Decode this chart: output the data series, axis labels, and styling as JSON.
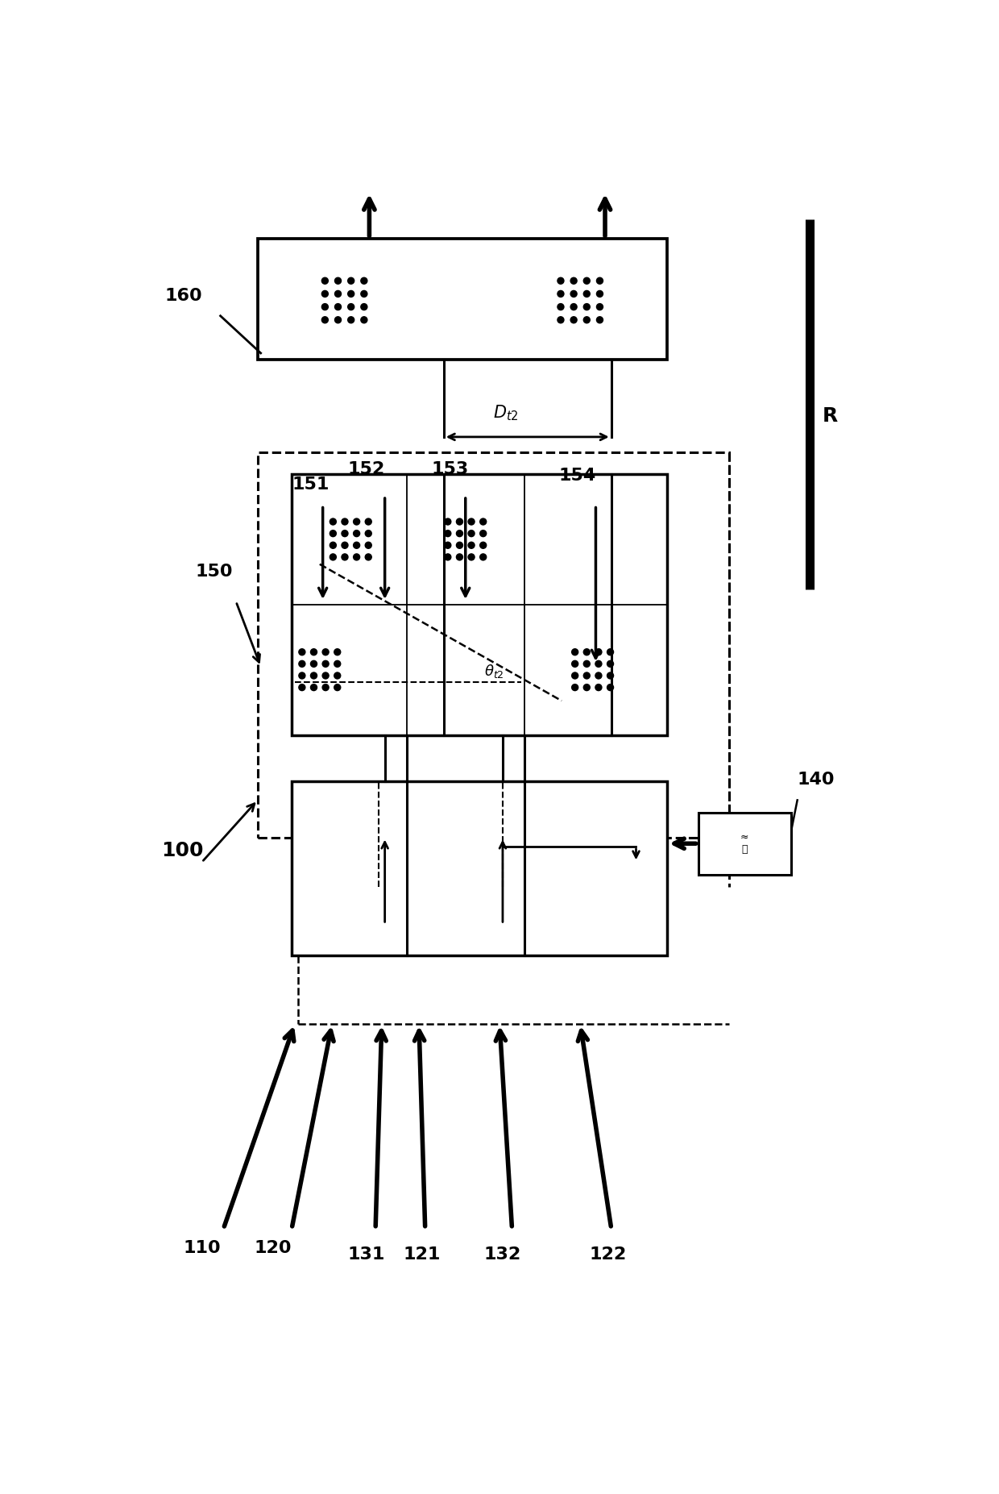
{
  "bg_color": "#ffffff",
  "fig_width": 12.4,
  "fig_height": 18.53,
  "dpi": 100,
  "labels": {
    "100": "100",
    "110": "110",
    "120": "120",
    "121": "121",
    "122": "122",
    "131": "131",
    "132": "132",
    "140": "140",
    "150": "150",
    "151": "151",
    "152": "152",
    "153": "153",
    "154": "154",
    "160": "160",
    "R": "R",
    "Dt2": "$D_{t2}$",
    "theta_t2": "$\\theta_{t2}$"
  }
}
